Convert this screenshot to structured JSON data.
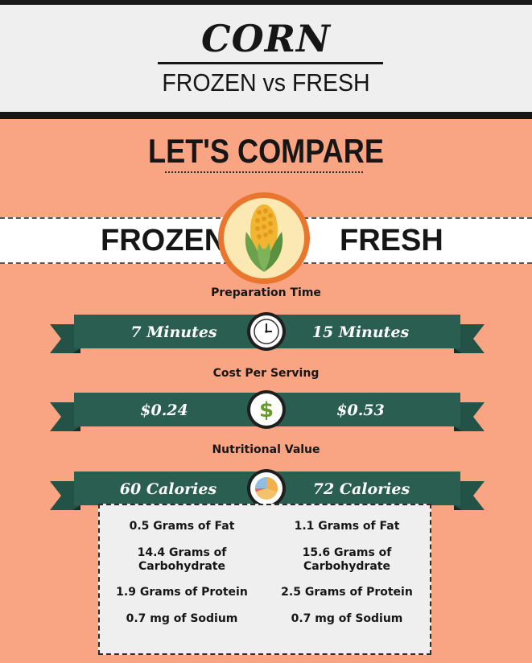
{
  "header": {
    "title": "CORN",
    "subtitle": "FROZEN vs FRESH"
  },
  "compare": {
    "heading": "LET'S COMPARE",
    "left_label": "FROZEN",
    "right_label": "FRESH"
  },
  "sections": [
    {
      "label": "Preparation Time",
      "left": "7 Minutes",
      "right": "15 Minutes",
      "icon": "clock-icon"
    },
    {
      "label": "Cost Per Serving",
      "left": "$0.24",
      "right": "$0.53",
      "icon": "dollar-icon"
    },
    {
      "label": "Nutritional Value",
      "left": "60 Calories",
      "right": "72 Calories",
      "icon": "pie-chart-icon"
    }
  ],
  "nutrition": {
    "left": [
      "0.5 Grams of Fat",
      "14.4 Grams of Carbohydrate",
      "1.9 Grams of Protein",
      "0.7 mg of Sodium"
    ],
    "right": [
      "1.1 Grams of Fat",
      "15.6 Grams of Carbohydrate",
      "2.5 Grams of Protein",
      "0.7 mg of Sodium"
    ]
  },
  "colors": {
    "background": "#f9a584",
    "ribbon": "#235347",
    "ribbon_dark": "#173a31",
    "accent": "#e8762f",
    "dollar": "#6a9a2e"
  }
}
